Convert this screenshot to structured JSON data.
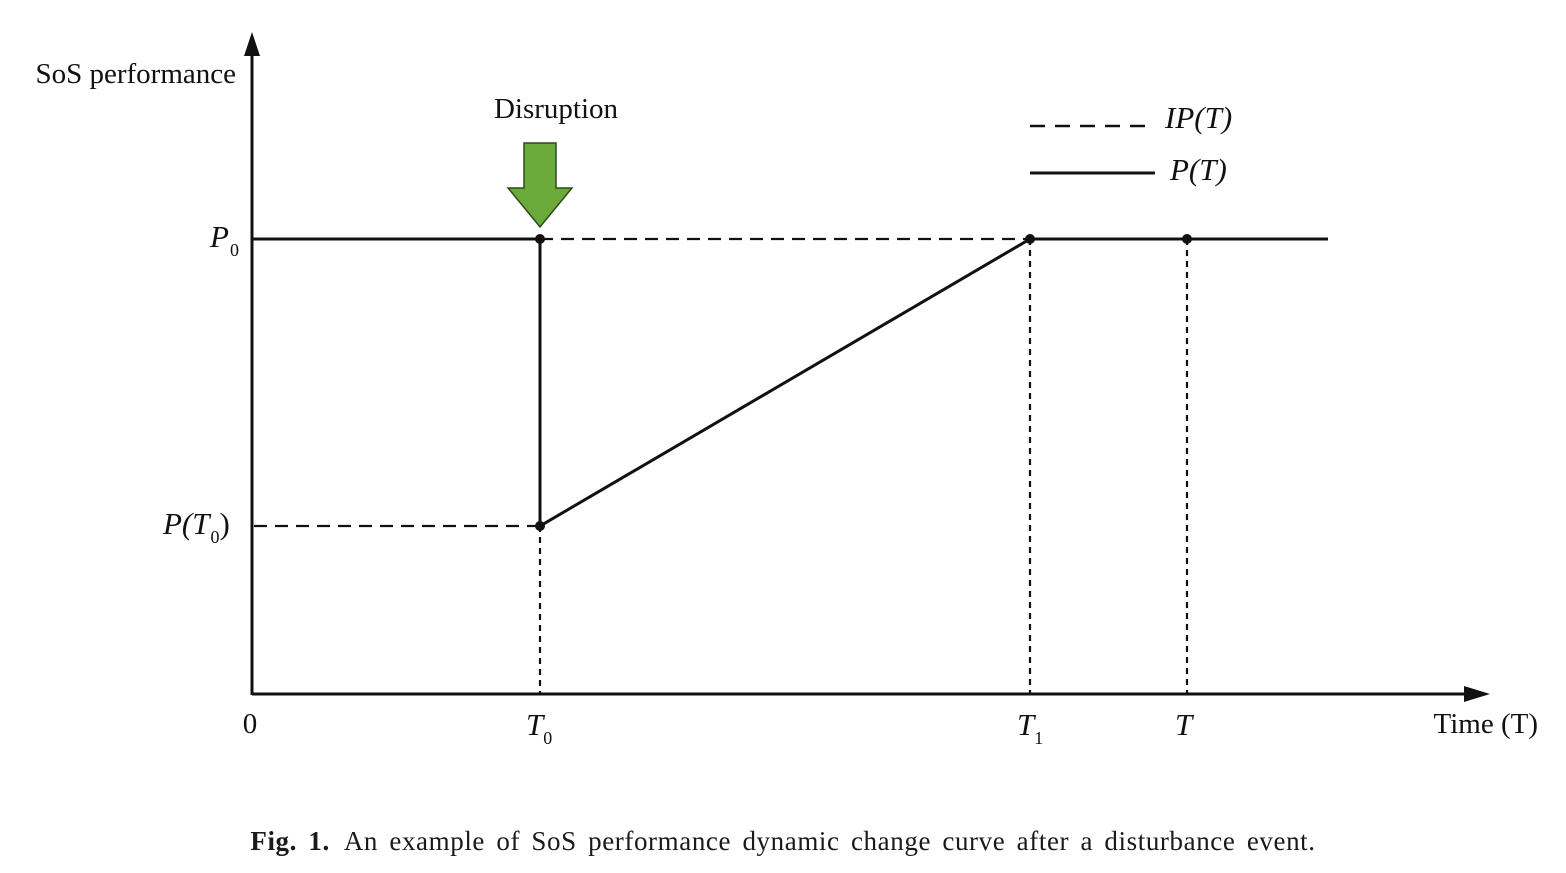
{
  "figure": {
    "y_axis_label": "SoS performance",
    "x_axis_label": "Time (T)",
    "origin_label": "0",
    "event_label": "Disruption",
    "y_ticks": [
      {
        "id": "p0",
        "main": "P",
        "sub": "0",
        "suffix": ""
      },
      {
        "id": "pt0",
        "main": "P(T",
        "sub": "0",
        "suffix": ")"
      }
    ],
    "x_ticks": [
      {
        "id": "t0",
        "main": "T",
        "sub": "0"
      },
      {
        "id": "t1",
        "main": "T",
        "sub": "1"
      },
      {
        "id": "t",
        "main": "T",
        "sub": ""
      }
    ],
    "legend": [
      {
        "label": "IP(T)",
        "style": "dashed"
      },
      {
        "label": "P(T)",
        "style": "solid"
      }
    ],
    "arrow_color": "#6aaa3a",
    "line_color": "#111111"
  },
  "caption": {
    "label": "Fig. 1.",
    "text": "An example of SoS performance dynamic change curve after a disturbance event."
  }
}
